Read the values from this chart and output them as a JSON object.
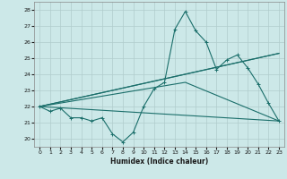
{
  "xlabel": "Humidex (Indice chaleur)",
  "bg_color": "#cce8e8",
  "grid_color": "#b0cccc",
  "line_color": "#1a6e6a",
  "xlim": [
    -0.5,
    23.5
  ],
  "ylim": [
    19.5,
    28.5
  ],
  "yticks": [
    20,
    21,
    22,
    23,
    24,
    25,
    26,
    27,
    28
  ],
  "xticks": [
    0,
    1,
    2,
    3,
    4,
    5,
    6,
    7,
    8,
    9,
    10,
    11,
    12,
    13,
    14,
    15,
    16,
    17,
    18,
    19,
    20,
    21,
    22,
    23
  ],
  "series1_x": [
    0,
    1,
    2,
    3,
    4,
    5,
    6,
    7,
    8,
    9,
    10,
    11,
    12,
    13,
    14,
    15,
    16,
    17,
    18,
    19,
    20,
    21,
    22,
    23
  ],
  "series1_y": [
    22.0,
    21.7,
    21.9,
    21.3,
    21.3,
    21.1,
    21.3,
    20.3,
    19.8,
    20.4,
    22.0,
    23.1,
    23.5,
    26.8,
    27.9,
    26.7,
    26.0,
    24.3,
    24.9,
    25.2,
    24.4,
    23.4,
    22.2,
    21.1
  ],
  "series2_x": [
    0,
    23
  ],
  "series2_y": [
    22.0,
    21.1
  ],
  "series3_x": [
    0,
    14,
    23
  ],
  "series3_y": [
    22.0,
    23.5,
    21.1
  ],
  "series4_x": [
    0,
    23
  ],
  "series4_y": [
    22.0,
    25.3
  ],
  "series5_x": [
    0,
    14,
    23
  ],
  "series5_y": [
    22.0,
    24.0,
    25.3
  ]
}
